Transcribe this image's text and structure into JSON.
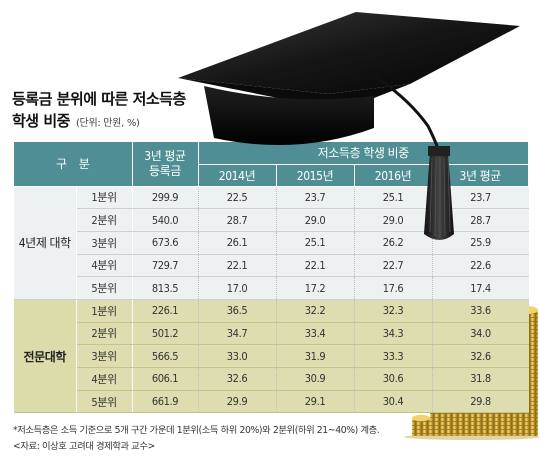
{
  "title": {
    "line1": "등록금 분위에 따른 저소득층",
    "line2": "학생 비중",
    "unit": "(단위: 만원, %)"
  },
  "table": {
    "header": {
      "category": "구    분",
      "avg_tuition": "3년 평균\n등록금",
      "low_income_share": "저소득층 학생 비중",
      "years": [
        "2014년",
        "2015년",
        "2016년",
        "3년 평균"
      ]
    },
    "groups": [
      {
        "name": "4년제 대학",
        "rows": [
          {
            "quintile": "1분위",
            "avg": "299.9",
            "y2014": "22.5",
            "y2015": "23.7",
            "y2016": "25.1",
            "avg3": "23.7"
          },
          {
            "quintile": "2분위",
            "avg": "540.0",
            "y2014": "28.7",
            "y2015": "29.0",
            "y2016": "29.0",
            "avg3": "28.7"
          },
          {
            "quintile": "3분위",
            "avg": "673.6",
            "y2014": "26.1",
            "y2015": "25.1",
            "y2016": "26.2",
            "avg3": "25.9"
          },
          {
            "quintile": "4분위",
            "avg": "729.7",
            "y2014": "22.1",
            "y2015": "22.1",
            "y2016": "22.7",
            "avg3": "22.6"
          },
          {
            "quintile": "5분위",
            "avg": "813.5",
            "y2014": "17.0",
            "y2015": "17.2",
            "y2016": "17.6",
            "avg3": "17.4"
          }
        ]
      },
      {
        "name": "전문대학",
        "rows": [
          {
            "quintile": "1분위",
            "avg": "226.1",
            "y2014": "36.5",
            "y2015": "32.2",
            "y2016": "32.3",
            "avg3": "33.6"
          },
          {
            "quintile": "2분위",
            "avg": "501.2",
            "y2014": "34.7",
            "y2015": "33.4",
            "y2016": "34.3",
            "avg3": "34.0"
          },
          {
            "quintile": "3분위",
            "avg": "566.5",
            "y2014": "33.0",
            "y2015": "31.9",
            "y2016": "33.3",
            "avg3": "32.6"
          },
          {
            "quintile": "4분위",
            "avg": "606.1",
            "y2014": "32.6",
            "y2015": "30.9",
            "y2016": "30.6",
            "avg3": "31.8"
          },
          {
            "quintile": "5분위",
            "avg": "661.9",
            "y2014": "29.9",
            "y2015": "29.1",
            "y2016": "30.4",
            "avg3": "29.8"
          }
        ]
      }
    ]
  },
  "footnotes": {
    "note": "*저소득층은 소득 기준으로 5개 구간 가운데 1분위(소득 하위 20%)와 2분위(하위 21~40%) 계층.",
    "source": "<자료: 이상호 고려대 경제학과 교수>"
  },
  "colors": {
    "header": "#4f8e94",
    "univ_rows": "#eef1f1",
    "college_rows": "#ddddb0",
    "cap": "#111111"
  },
  "icons": [
    "graduation-cap-icon",
    "gold-coins-icon"
  ]
}
